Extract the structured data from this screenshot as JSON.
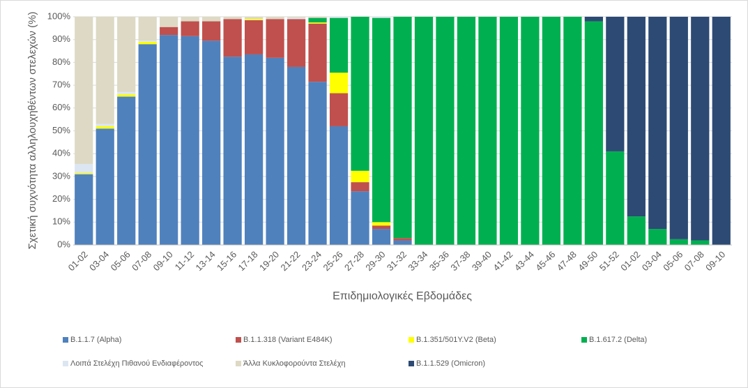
{
  "chart_data": {
    "type": "stacked_bar",
    "y_label": "Σχετική συχνότητα αλληλουχηθέντων στελεχών (%)",
    "x_label": "Επιδημιολογικές Εβδομάδες",
    "categories": [
      "01-02",
      "03-04",
      "05-06",
      "07-08",
      "09-10",
      "11-12",
      "13-14",
      "15-16",
      "17-18",
      "19-20",
      "21-22",
      "23-24",
      "25-26",
      "27-28",
      "29-30",
      "31-32",
      "33-34",
      "35-36",
      "37-38",
      "39-40",
      "41-42",
      "43-44",
      "45-46",
      "47-48",
      "49-50",
      "51-52",
      "01-02",
      "03-04",
      "05-06",
      "07-08",
      "09-10"
    ],
    "series": [
      {
        "name": "B.1.1.7 (Alpha)",
        "color": "#4f81bd",
        "values": [
          31,
          51,
          65,
          88,
          92,
          91.5,
          89.5,
          82.5,
          83.5,
          82,
          78,
          71.5,
          52,
          23.5,
          7,
          2,
          0,
          0,
          0,
          0,
          0,
          0,
          0,
          0,
          0,
          0,
          0,
          0,
          0,
          0,
          0
        ]
      },
      {
        "name": "B.1.1.318 (Variant E484K)",
        "color": "#c0504d",
        "values": [
          0,
          0,
          0,
          0,
          3.5,
          6.5,
          8.5,
          16.5,
          15,
          17,
          21,
          25.5,
          14.5,
          4,
          1.5,
          1,
          0,
          0,
          0,
          0,
          0,
          0,
          0,
          0,
          0,
          0,
          0,
          0,
          0,
          0,
          0
        ]
      },
      {
        "name": "B.1.351/501Y.V2 (Beta)",
        "color": "#ffff00",
        "values": [
          0.5,
          1,
          1,
          1,
          0,
          0,
          0,
          0,
          0.5,
          0,
          0,
          0.5,
          9,
          5,
          1.5,
          0,
          0,
          0,
          0,
          0,
          0,
          0,
          0,
          0,
          0,
          0,
          0,
          0,
          0,
          0,
          0
        ]
      },
      {
        "name": "B.1.617.2 (Delta)",
        "color": "#00b050",
        "values": [
          0,
          0,
          0,
          0,
          0,
          0,
          0,
          0,
          0,
          0,
          0,
          2,
          24,
          67.5,
          89.5,
          97,
          100,
          100,
          100,
          100,
          100,
          100,
          100,
          100,
          98,
          41,
          12.5,
          7,
          2.5,
          2,
          0
        ]
      },
      {
        "name": "Λοιπά Στελέχη Πιθανού Ενδιαφέροντος",
        "color": "#dce6f2",
        "values": [
          4,
          1,
          1,
          0.5,
          0,
          0,
          0,
          0,
          0,
          0,
          0.5,
          0,
          0.5,
          0,
          0.5,
          0,
          0,
          0,
          0,
          0,
          0,
          0,
          0,
          0,
          0,
          0,
          0,
          0,
          0,
          0,
          0
        ]
      },
      {
        "name": "Άλλα Κυκλοφορούντα Στελέχη",
        "color": "#ddd9c4",
        "values": [
          64.5,
          47,
          33,
          10.5,
          4.5,
          2,
          2,
          1,
          1,
          1,
          0.5,
          0.5,
          0,
          0,
          0,
          0,
          0,
          0,
          0,
          0,
          0,
          0,
          0,
          0,
          0,
          0,
          0,
          0,
          0,
          0,
          0
        ]
      },
      {
        "name": "B.1.1.529 (Omicron)",
        "color": "#2c4a74",
        "values": [
          0,
          0,
          0,
          0,
          0,
          0,
          0,
          0,
          0,
          0,
          0,
          0,
          0,
          0,
          0,
          0,
          0,
          0,
          0,
          0,
          0,
          0,
          0,
          0,
          2,
          59,
          87.5,
          93,
          97.5,
          98,
          100
        ]
      }
    ],
    "ylim": [
      0,
      100
    ],
    "yticks": [
      {
        "value": 0,
        "label": "0%"
      },
      {
        "value": 10,
        "label": "10%"
      },
      {
        "value": 20,
        "label": "20%"
      },
      {
        "value": 30,
        "label": "30%"
      },
      {
        "value": 40,
        "label": "40%"
      },
      {
        "value": 50,
        "label": "50%"
      },
      {
        "value": 60,
        "label": "60%"
      },
      {
        "value": 70,
        "label": "70%"
      },
      {
        "value": 80,
        "label": "80%"
      },
      {
        "value": 90,
        "label": "90%"
      },
      {
        "value": 100,
        "label": "100%"
      }
    ],
    "grid": true
  }
}
